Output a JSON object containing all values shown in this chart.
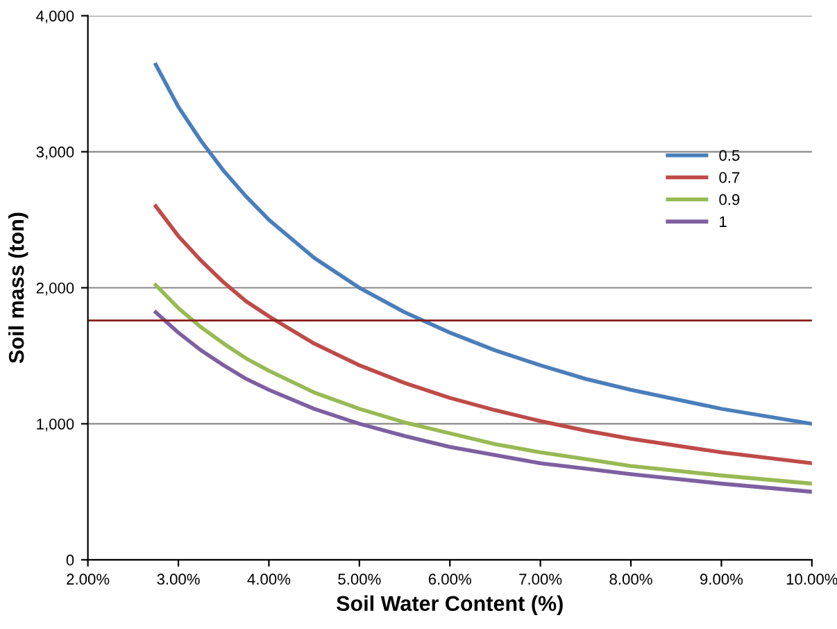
{
  "chart_data": {
    "type": "line",
    "xlabel": "Soil Water Content (%)",
    "ylabel": "Soil mass (ton)",
    "x": [
      2.75,
      3,
      3.25,
      3.5,
      3.75,
      4,
      4.5,
      5,
      5.5,
      6,
      6.5,
      7,
      7.5,
      8,
      9,
      10
    ],
    "series": [
      {
        "name": "0.5",
        "color": "#4a7ebb",
        "values": [
          3640,
          3330,
          3080,
          2860,
          2670,
          2500,
          2220,
          2000,
          1820,
          1670,
          1540,
          1430,
          1330,
          1250,
          1110,
          1000
        ]
      },
      {
        "name": "0.7",
        "color": "#be4b48",
        "values": [
          2600,
          2380,
          2200,
          2040,
          1900,
          1790,
          1590,
          1430,
          1300,
          1190,
          1100,
          1020,
          950,
          890,
          790,
          710
        ]
      },
      {
        "name": "0.9",
        "color": "#98b954",
        "values": [
          2020,
          1850,
          1710,
          1590,
          1480,
          1390,
          1230,
          1110,
          1010,
          930,
          850,
          790,
          740,
          690,
          620,
          560
        ]
      },
      {
        "name": "1",
        "color": "#7d60a0",
        "values": [
          1820,
          1670,
          1540,
          1430,
          1330,
          1250,
          1110,
          1000,
          910,
          830,
          770,
          710,
          670,
          630,
          560,
          500
        ]
      }
    ],
    "xlim": [
      2,
      10
    ],
    "ylim": [
      0,
      4000
    ],
    "xticks": [
      {
        "value": 2,
        "label": "2.00%"
      },
      {
        "value": 3,
        "label": "3.00%"
      },
      {
        "value": 4,
        "label": "4.00%"
      },
      {
        "value": 5,
        "label": "5.00%"
      },
      {
        "value": 6,
        "label": "6.00%"
      },
      {
        "value": 7,
        "label": "7.00%"
      },
      {
        "value": 8,
        "label": "8.00%"
      },
      {
        "value": 9,
        "label": "9.00%"
      },
      {
        "value": 10,
        "label": "10.00%"
      }
    ],
    "yticks": [
      0,
      {
        "value": 1000,
        "label": "1,000"
      },
      {
        "value": 2000,
        "label": "2,000"
      },
      {
        "value": 3000,
        "label": "3,000"
      },
      {
        "value": 4000,
        "label": "4,000"
      }
    ],
    "ref_lines": [
      {
        "axis": "y",
        "value": 1760,
        "color": "#8b1a1a"
      }
    ],
    "grid": "y",
    "legend": "right",
    "marker": "none",
    "line_style": "solid"
  }
}
